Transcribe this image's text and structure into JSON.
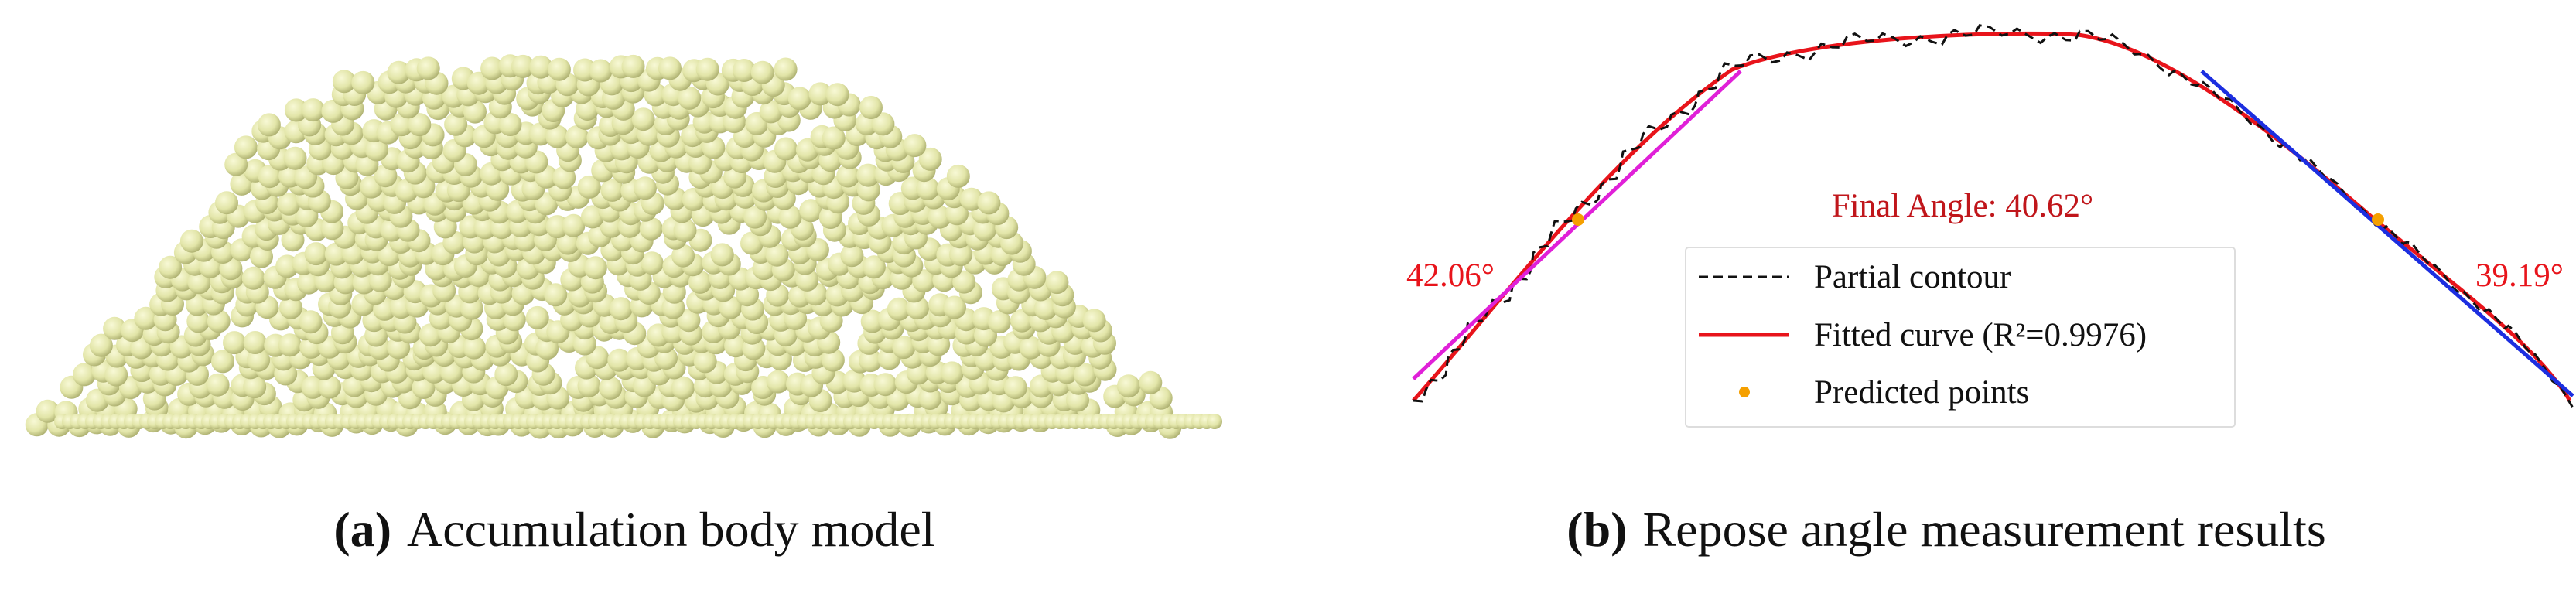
{
  "panels": [
    {
      "label": "(a)",
      "caption": "Accumulation body model"
    },
    {
      "label": "(b)",
      "caption": "Repose angle measurement results",
      "title": "Final Angle: 40.62°",
      "left_angle": "42.06°",
      "right_angle": "39.19°",
      "legend": [
        "Partial contour",
        "Fitted curve (R²=0.9976)",
        "Predicted points"
      ]
    }
  ]
}
